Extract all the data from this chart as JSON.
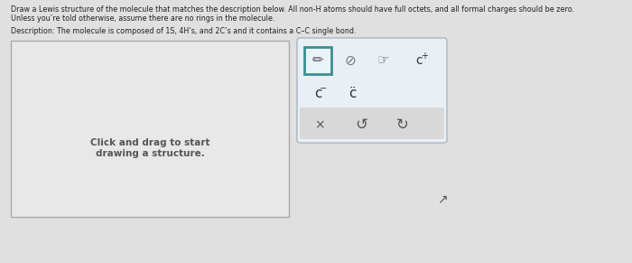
{
  "page_bg": "#e0e0e0",
  "title_text1": "Draw a Lewis structure of the molecule that matches the description below. All non-H atoms should have full octets, and all formal charges should be zero.",
  "title_text2": "Unless you’re told otherwise, assume there are no rings in the molecule.",
  "description": "Description: The molecule is composed of 1S, 4H’s, and 2C’s and it contains a C–C single bond.",
  "draw_box_bg": "#e8e8e8",
  "draw_box_border": "#aaaaaa",
  "draw_box_text_line1": "Click and drag to start",
  "draw_box_text_line2": "drawing a structure.",
  "toolbar_bg": "#e8eff5",
  "toolbar_border": "#99aabb",
  "toolbar_bottom_bg": "#d8d8d8",
  "pencil_box_border": "#3a9090",
  "pencil_box_bg": "#eaf3f8"
}
